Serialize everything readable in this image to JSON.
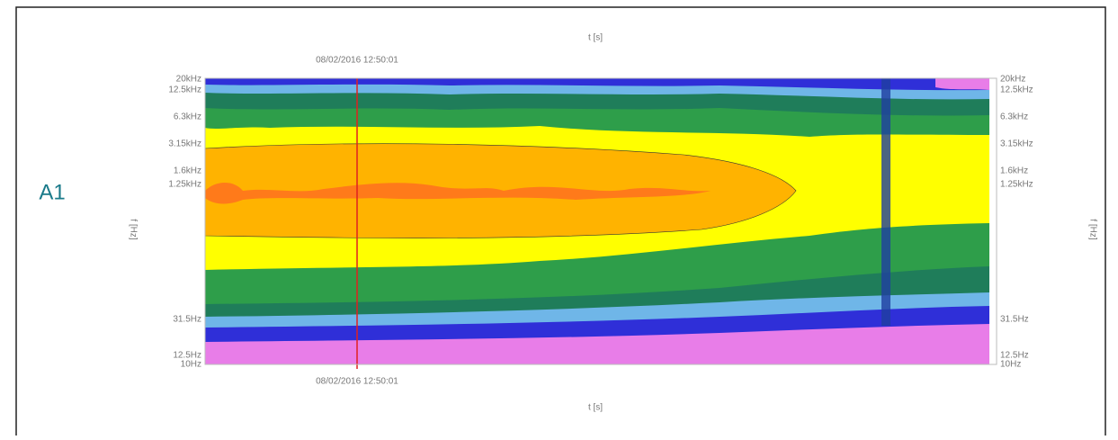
{
  "panel_label": "A1",
  "plot": {
    "top_axis_label": "t [s]",
    "bottom_axis_label": "t [s]",
    "left_axis_label": "f [Hz]",
    "right_axis_label": "f [Hz]",
    "top_marker_label": "08/02/2016 12:50:01",
    "bottom_marker_label": "08/02/2016 12:50:01",
    "frequency_tick_labels": [
      "20kHz",
      "12.5kHz",
      "6.3kHz",
      "3.15kHz",
      "1.6kHz",
      "1.25kHz",
      "31.5Hz",
      "12.5Hz",
      "10Hz"
    ]
  }
}
